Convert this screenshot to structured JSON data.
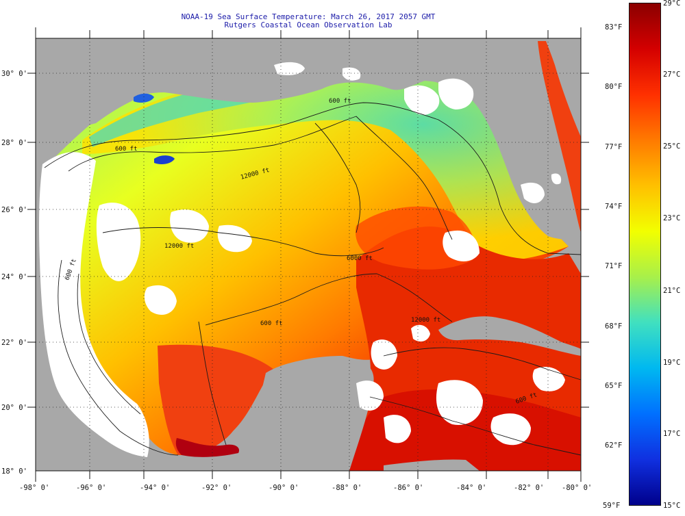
{
  "header": {
    "line1": "NOAA-19 Sea Surface Temperature:  March 26, 2017 2057 GMT",
    "line2": "Rutgers Coastal Ocean Observation Lab"
  },
  "axes": {
    "lon_labels": [
      "-98° 0'",
      "-96° 0'",
      "-94° 0'",
      "-92° 0'",
      "-90° 0'",
      "-88° 0'",
      "-86° 0'",
      "-84° 0'",
      "-82° 0'",
      "-80° 0'"
    ],
    "lat_labels": [
      "30° 0'",
      "28° 0'",
      "26° 0'",
      "24° 0'",
      "22° 0'",
      "20° 0'",
      "18° 0'"
    ]
  },
  "contours": {
    "labels": [
      "600 ft",
      "600 ft",
      "12000 ft",
      "12000 ft",
      "6000 ft",
      "600 ft",
      "600 ft",
      "600 ft",
      "12000 ft"
    ]
  },
  "colorbar": {
    "fahrenheit": [
      "83°F",
      "80°F",
      "77°F",
      "74°F",
      "71°F",
      "68°F",
      "65°F",
      "62°F",
      "59°F"
    ],
    "celsius": [
      "29°C",
      "27°C",
      "25°C",
      "23°C",
      "21°C",
      "19°C",
      "17°C",
      "15°C"
    ],
    "colors": [
      "#8b0000",
      "#d40000",
      "#ff3000",
      "#ff7a00",
      "#ffc000",
      "#f2ff00",
      "#a8f04a",
      "#40e0c0",
      "#00b8f0",
      "#0070ff",
      "#1030e0",
      "#00008b"
    ]
  },
  "legend_colors": {
    "land": "#a8a8a8",
    "cloud": "#ffffff",
    "title_text": "#1a1aa8"
  }
}
